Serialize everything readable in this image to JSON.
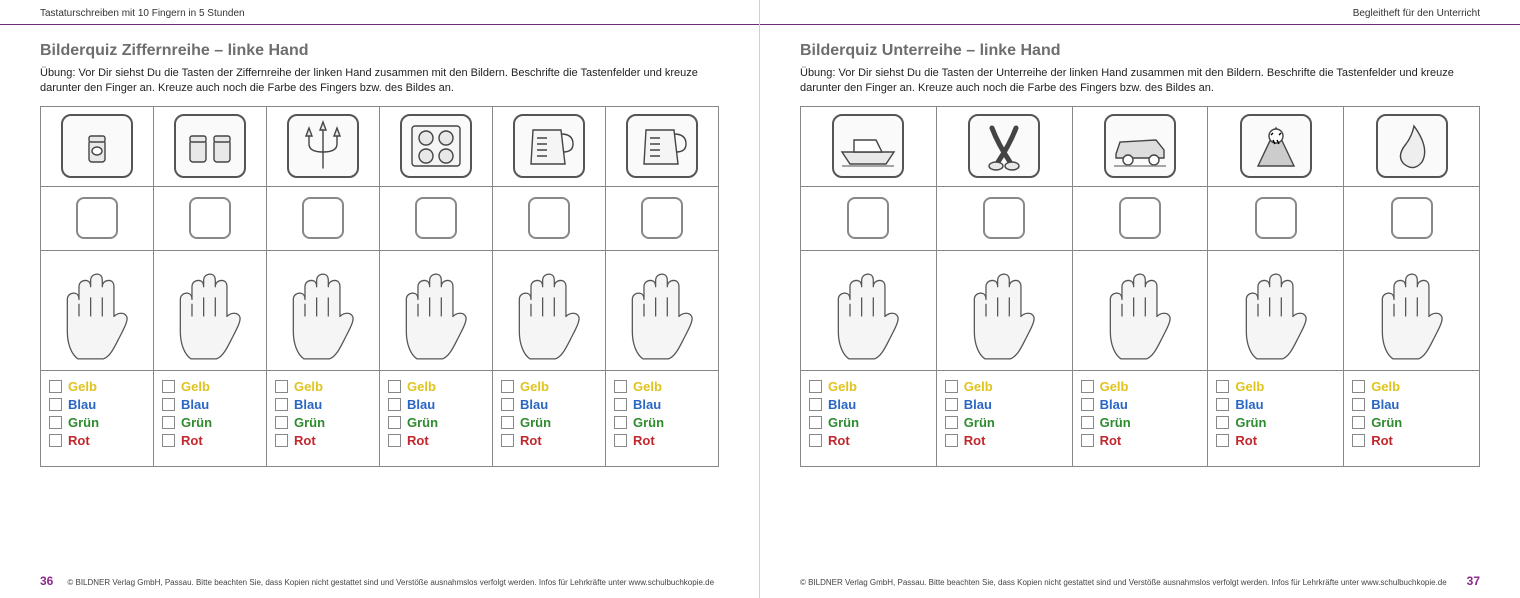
{
  "book": {
    "running_head_left": "Tastaturschreiben mit 10 Fingern in 5 Stunden",
    "running_head_right": "Begleitheft für den Unterricht",
    "copyright": "© BILDNER Verlag GmbH, Passau. Bitte beachten Sie, dass Kopien nicht gestattet sind und Verstöße ausnahmslos verfolgt werden. Infos für Lehrkräfte unter www.schulbuchkopie.de",
    "accent_color": "#6b2a7a",
    "page_num_color": "#8a2a8a"
  },
  "colors_palette": {
    "yellow": "#e0c31e",
    "blue": "#2a66c4",
    "green": "#2e8b2e",
    "red": "#c1272d",
    "cell_border": "#888888",
    "pic_border": "#555555"
  },
  "color_options": [
    {
      "label": "Gelb",
      "class": "c-yellow"
    },
    {
      "label": "Blau",
      "class": "c-blue"
    },
    {
      "label": "Grün",
      "class": "c-green"
    },
    {
      "label": "Rot",
      "class": "c-red"
    }
  ],
  "left_page": {
    "page_number": "36",
    "title": "Bilderquiz Ziffernreihe – linke Hand",
    "instructions": "Übung: Vor Dir siehst Du die Tasten der Ziffernreihe der linken Hand zusammen mit den Bildern. Beschrifte die Tastenfelder und kreuze darunter den Finger an. Kreuze auch noch die Farbe des Fingers bzw. des Bildes an.",
    "columns": 6,
    "pictures": [
      "jar-one",
      "jars-two",
      "trident",
      "stove-wheels",
      "measuring-cup",
      "measuring-cup"
    ]
  },
  "right_page": {
    "page_number": "37",
    "title": "Bilderquiz Unterreihe – linke Hand",
    "instructions": "Übung: Vor Dir siehst Du die Tasten der Unterreihe der linken Hand zusammen mit den Bildern. Beschrifte die Tastenfelder und kreuze darunter den Finger an. Kreuze auch noch die Farbe des Fingers bzw. des Bildes an.",
    "columns": 5,
    "pictures": [
      "yacht",
      "legs-x",
      "car",
      "vampire",
      "drop"
    ]
  }
}
